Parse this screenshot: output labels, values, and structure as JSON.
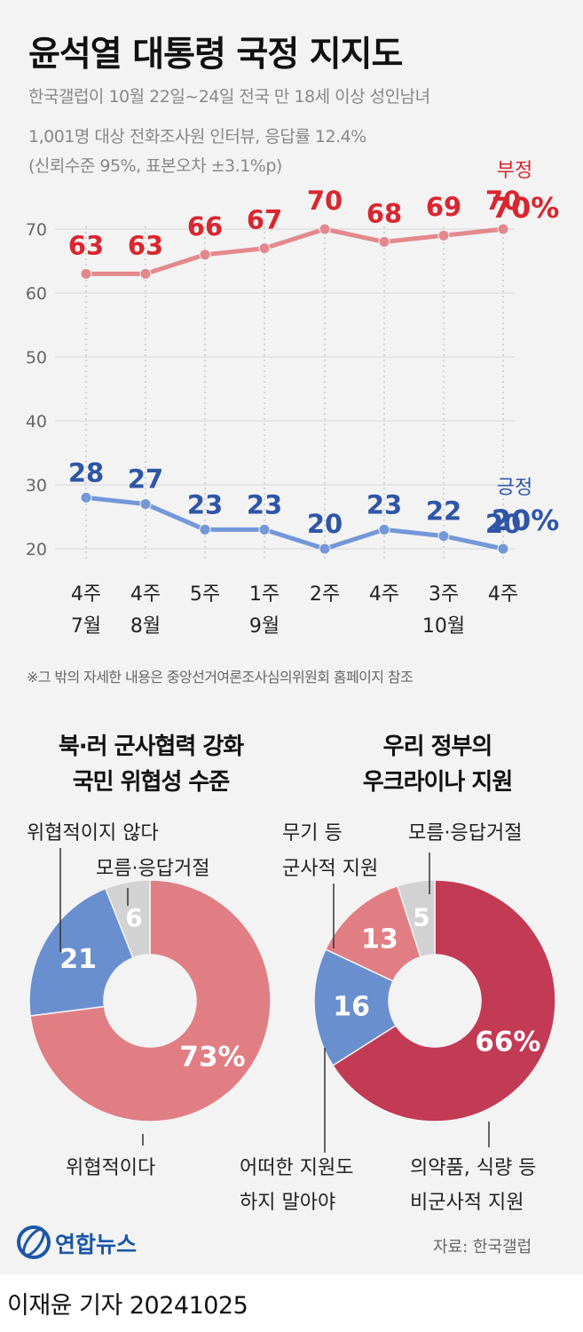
{
  "title": "윤석열 대통령 국정 지지도",
  "subtitle_lines": [
    "한국갤럽이 10월 22일~24일 전국 만 18세 이상 성인남녀",
    "1,001명 대상 전화조사원 인터뷰, 응답률 12.4%",
    "(신뢰수준 95%, 표본오차 ±3.1%p)"
  ],
  "footnote": "※그 밖의 자세한 내용은 중앙선거여론조사심의위원회 홈페이지 참조",
  "source": "자료: 한국갤럽",
  "logo_text": "연합뉴스",
  "byline": "이재윤 기자 20241025",
  "colors": {
    "negative_line": "#e3888d",
    "negative_label": "#d9262f",
    "positive_line": "#7397d8",
    "positive_label": "#2f56a6",
    "pie1_main": "#e07e84",
    "pie1_second": "#6a8fcf",
    "pie1_third": "#d2d2d2",
    "pie2_main": "#c33a55",
    "pie2_second": "#6a8fcf",
    "pie2_third": "#e07e84",
    "pie2_fourth": "#d2d2d2",
    "logo_blue": "#1b57a6"
  },
  "chart_data": [
    {
      "type": "line",
      "categories": [
        "4주 7월",
        "4주 8월",
        "5주",
        "1주 9월",
        "2주",
        "4주",
        "3주 10월",
        "4주"
      ],
      "x_tick_lines": [
        [
          "4주",
          "7월"
        ],
        [
          "4주",
          "8월"
        ],
        [
          "5주",
          ""
        ],
        [
          "1주",
          "9월"
        ],
        [
          "2주",
          ""
        ],
        [
          "4주",
          ""
        ],
        [
          "3주",
          "10월"
        ],
        [
          "4주",
          ""
        ]
      ],
      "series": [
        {
          "name": "부정",
          "values": [
            63,
            63,
            66,
            67,
            70,
            68,
            69,
            70
          ],
          "end_label": "70%"
        },
        {
          "name": "긍정",
          "values": [
            28,
            27,
            23,
            23,
            20,
            23,
            22,
            20
          ],
          "end_label": "20%"
        }
      ],
      "ylim": [
        20,
        70
      ],
      "yticks": [
        20,
        30,
        40,
        50,
        60,
        70
      ],
      "grid": true
    },
    {
      "type": "pie",
      "title_lines": [
        "북·러 군사협력 강화",
        "국민 위협성 수준"
      ],
      "slices": [
        {
          "label": "위협적이다",
          "value": 73,
          "display": "73%"
        },
        {
          "label": "위협적이지 않다",
          "value": 21,
          "display": "21"
        },
        {
          "label": "모름·응답거절",
          "value": 6,
          "display": "6"
        }
      ]
    },
    {
      "type": "pie",
      "title_lines": [
        "우리 정부의",
        "우크라이나 지원"
      ],
      "slices": [
        {
          "label_lines": [
            "의약품, 식량 등",
            "비군사적 지원"
          ],
          "value": 66,
          "display": "66%"
        },
        {
          "label_lines": [
            "어떠한 지원도",
            "하지 말아야"
          ],
          "value": 16,
          "display": "16"
        },
        {
          "label_lines": [
            "무기 등",
            "군사적 지원"
          ],
          "value": 13,
          "display": "13"
        },
        {
          "label_lines": [
            "모름·응답거절"
          ],
          "value": 5,
          "display": "5"
        }
      ]
    }
  ]
}
